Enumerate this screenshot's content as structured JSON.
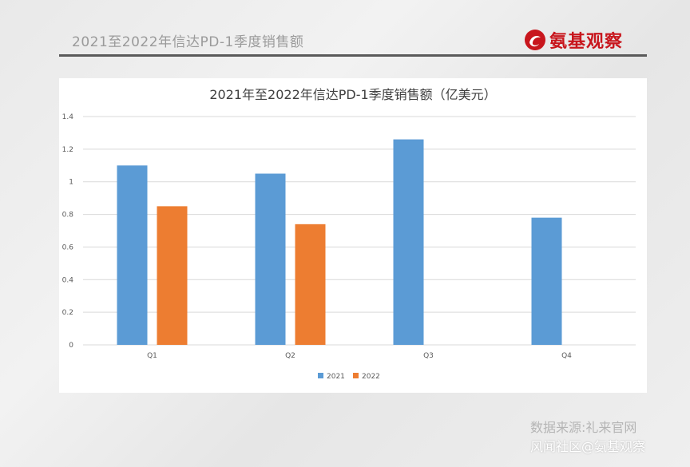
{
  "header": {
    "slide_title": "2021至2022年信达PD-1季度销售额",
    "logo_text": "氨基观察",
    "logo_icon": "swirl-logo-icon"
  },
  "footer": {
    "source": "数据来源:礼来官网",
    "watermark": "风闻社区@氨基观察"
  },
  "colors": {
    "series_2021": "#5b9bd5",
    "series_2022": "#ed7d31",
    "brand_red": "#c8161d"
  },
  "chart_data": {
    "type": "bar",
    "title": "2021年至2022年信达PD-1季度销售额（亿美元）",
    "categories": [
      "Q1",
      "Q2",
      "Q3",
      "Q4"
    ],
    "series": [
      {
        "name": "2021",
        "values": [
          1.1,
          1.05,
          1.26,
          0.78
        ]
      },
      {
        "name": "2022",
        "values": [
          0.85,
          0.74,
          null,
          null
        ]
      }
    ],
    "ylim": [
      0,
      1.4
    ],
    "yticks": [
      "0",
      "0.2",
      "0.4",
      "0.6",
      "0.8",
      "1",
      "1.2",
      "1.4"
    ],
    "grid": true,
    "legend_position": "bottom"
  }
}
